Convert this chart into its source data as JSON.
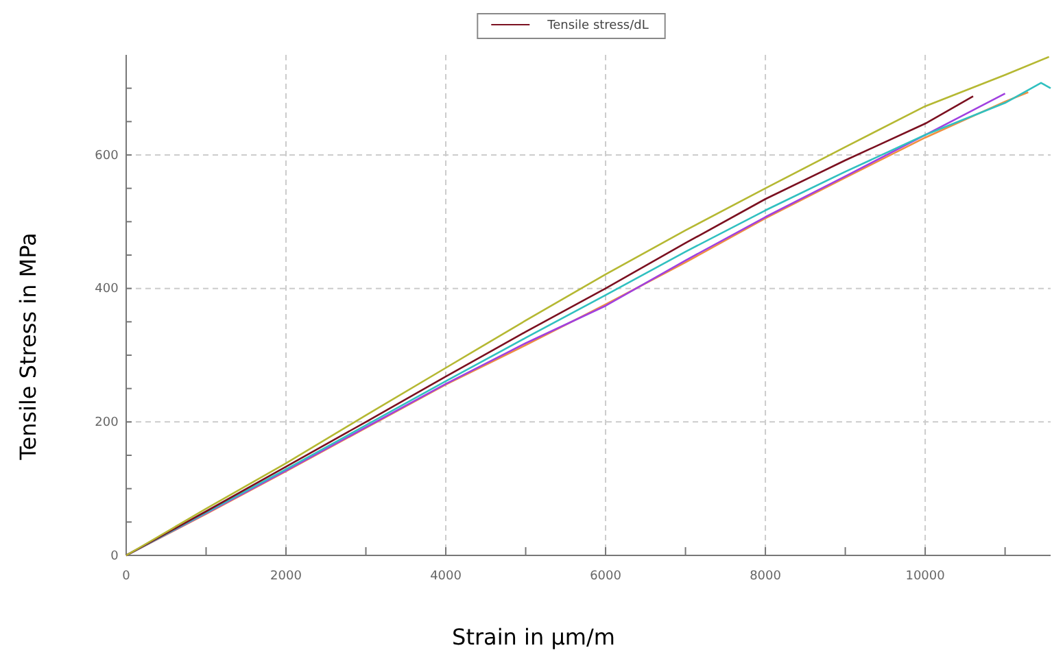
{
  "chart_data": {
    "type": "line",
    "xlabel": "Strain in µm/m",
    "ylabel": "Tensile Stress in MPa",
    "legend": "top",
    "grid": true,
    "line_style": "solid",
    "marker": "none",
    "xlim": [
      0,
      11570
    ],
    "ylim": [
      0,
      750
    ],
    "xticks": [
      0,
      {
        "value": 1000,
        "label": null
      },
      2000,
      {
        "value": 3000,
        "label": null
      },
      4000,
      {
        "value": 5000,
        "label": null
      },
      6000,
      {
        "value": 7000,
        "label": null
      },
      8000,
      {
        "value": 9000,
        "label": null
      },
      10000,
      {
        "value": 11000,
        "label": null
      }
    ],
    "yticks": [
      0,
      {
        "value": 50,
        "label": null
      },
      {
        "value": 100,
        "label": null
      },
      {
        "value": 150,
        "label": null
      },
      200,
      {
        "value": 250,
        "label": null
      },
      {
        "value": 300,
        "label": null
      },
      {
        "value": 350,
        "label": null
      },
      400,
      {
        "value": 450,
        "label": null
      },
      {
        "value": 500,
        "label": null
      },
      {
        "value": 550,
        "label": null
      },
      600,
      {
        "value": 650,
        "label": null
      },
      {
        "value": 700,
        "label": null
      }
    ],
    "series": [
      {
        "color": "#f09040",
        "x": [
          0,
          1000,
          2000,
          3000,
          4000,
          5000,
          6000,
          7000,
          8000,
          9000,
          10000,
          11000,
          11290
        ],
        "values": [
          0,
          62,
          126,
          191,
          256,
          315,
          376,
          439,
          505,
          566,
          626,
          680,
          694
        ]
      },
      {
        "color": "#a040e0",
        "x": [
          0,
          1000,
          2000,
          3000,
          4000,
          5000,
          6000,
          7000,
          8000,
          9000,
          10000,
          11000
        ],
        "values": [
          0,
          63,
          127,
          192,
          257,
          318,
          374,
          442,
          507,
          568,
          630,
          692
        ]
      },
      {
        "color": "#30c0c0",
        "x": [
          0,
          1000,
          2000,
          3000,
          4000,
          5000,
          6000,
          7000,
          8000,
          9000,
          10000,
          11000,
          11450,
          11570
        ],
        "values": [
          0,
          64,
          129,
          195,
          261,
          326,
          390,
          455,
          517,
          575,
          630,
          678,
          708,
          700
        ]
      },
      {
        "name": "Tensile stress/dL",
        "color": "#7b1020",
        "x": [
          0,
          1000,
          2000,
          3000,
          4000,
          5000,
          6000,
          7000,
          8000,
          9000,
          10000,
          10600
        ],
        "values": [
          0,
          66,
          133,
          200,
          268,
          335,
          400,
          468,
          534,
          592,
          647,
          688
        ]
      },
      {
        "color": "#b5b832",
        "x": [
          0,
          1000,
          2000,
          3000,
          4000,
          5000,
          6000,
          7000,
          8000,
          9000,
          10000,
          11000,
          11550
        ],
        "values": [
          0,
          70,
          138,
          210,
          281,
          352,
          421,
          487,
          550,
          612,
          673,
          720,
          747
        ]
      }
    ]
  }
}
